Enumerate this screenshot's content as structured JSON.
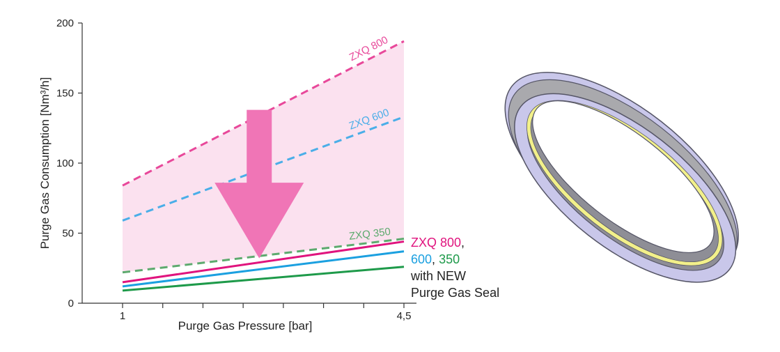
{
  "chart_data": {
    "type": "line",
    "xlabel": "Purge Gas Pressure [bar]",
    "ylabel": "Purge Gas Consumption [Nm³/h]",
    "xlim": [
      1,
      4.5
    ],
    "ylim": [
      0,
      200
    ],
    "x_ticks": [
      1,
      4.5
    ],
    "x_tick_labels": [
      "1",
      "4,5"
    ],
    "y_ticks": [
      0,
      50,
      100,
      150,
      200
    ],
    "y_tick_labels": [
      "0",
      "50",
      "100",
      "150",
      "200"
    ],
    "series": [
      {
        "name": "ZXQ 800",
        "style": "dashed",
        "color": "#e8489a",
        "x": [
          1,
          4.5
        ],
        "values": [
          84,
          187
        ]
      },
      {
        "name": "ZXQ 600",
        "style": "dashed",
        "color": "#4aaee8",
        "x": [
          1,
          4.5
        ],
        "values": [
          59,
          133
        ]
      },
      {
        "name": "ZXQ 350",
        "style": "dashed",
        "color": "#5daa6e",
        "x": [
          1,
          4.5
        ],
        "values": [
          22,
          46
        ]
      },
      {
        "name": "ZXQ 800 with NEW Purge Gas Seal",
        "style": "solid",
        "color": "#e0147e",
        "x": [
          1,
          4.5
        ],
        "values": [
          15,
          44
        ]
      },
      {
        "name": "ZXQ 600 with NEW Purge Gas Seal",
        "style": "solid",
        "color": "#1ba0e0",
        "x": [
          1,
          4.5
        ],
        "values": [
          12,
          37
        ]
      },
      {
        "name": "ZXQ 350 with NEW Purge Gas Seal",
        "style": "solid",
        "color": "#1e9a4a",
        "x": [
          1,
          4.5
        ],
        "values": [
          9,
          26
        ]
      }
    ],
    "band_fill_color": "#fbe1ef",
    "arrow_color": "#f075b6",
    "arrow_from_y": 138,
    "arrow_to_y": 32,
    "arrow_at_x": 2.7,
    "legend": {
      "line1": "ZXQ 800",
      "line1_suffix": ",",
      "line2_a": "600",
      "line2_sep": ", ",
      "line2_b": "350",
      "line3": "with NEW",
      "line4": "Purge Gas Seal",
      "color_800": "#e0147e",
      "color_600": "#1ba0e0",
      "color_350": "#1e9a4a",
      "color_text": "#222222"
    }
  },
  "illustration": {
    "name": "purge-gas-seal-ring",
    "colors": {
      "face": "#c9c7ea",
      "outline": "#555566",
      "band": "#a9a9ad",
      "inner_shadow": "#8e8e96",
      "seal": "#f2f08a"
    }
  }
}
